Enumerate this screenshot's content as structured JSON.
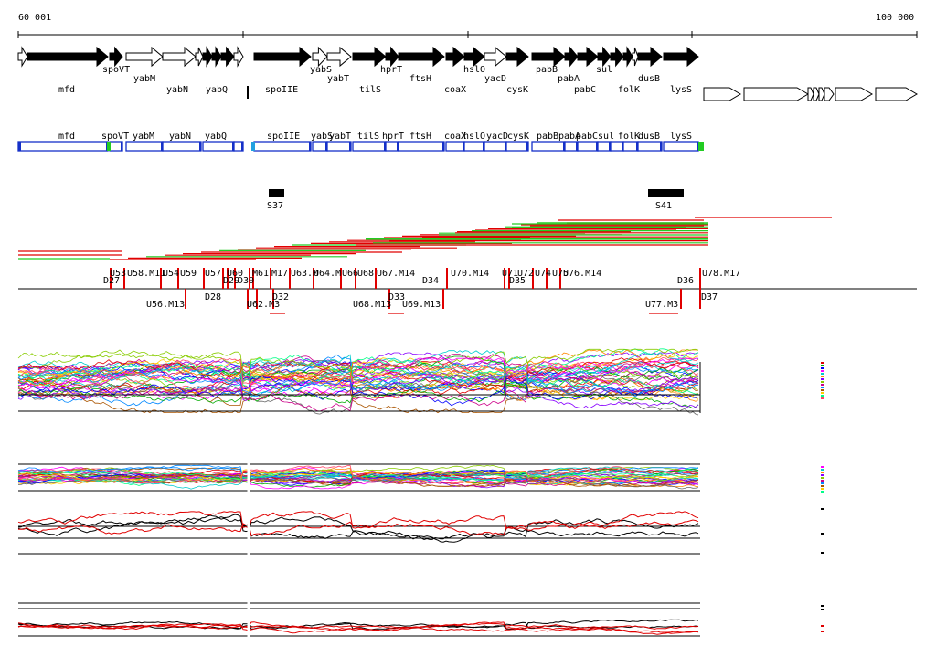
{
  "ruler": {
    "start_label": "60 001",
    "end_label": "100 000"
  },
  "colors": {
    "gene": "#000000",
    "blue": "#1530c8",
    "green": "#22cc22",
    "red": "#e00000",
    "gray": "#000000"
  },
  "genes_top": [
    {
      "name": "mfd",
      "row": "bottom"
    },
    {
      "name": "spoVT",
      "row": "top"
    },
    {
      "name": "yabM",
      "row": "mid"
    },
    {
      "name": "yabN",
      "row": "bottom"
    },
    {
      "name": "yabQ",
      "row": "bottom"
    },
    {
      "name": "spoIIE",
      "row": "bottom"
    },
    {
      "name": "yabS",
      "row": "top"
    },
    {
      "name": "yabT",
      "row": "mid"
    },
    {
      "name": "hprT",
      "row": "top"
    },
    {
      "name": "tilS",
      "row": "bottom"
    },
    {
      "name": "ftsH",
      "row": "mid"
    },
    {
      "name": "hslO",
      "row": "top"
    },
    {
      "name": "coaX",
      "row": "bottom"
    },
    {
      "name": "yacD",
      "row": "mid"
    },
    {
      "name": "cysK",
      "row": "bottom"
    },
    {
      "name": "pabB",
      "row": "top"
    },
    {
      "name": "pabA",
      "row": "mid"
    },
    {
      "name": "pabC",
      "row": "bottom"
    },
    {
      "name": "sul",
      "row": "top"
    },
    {
      "name": "folK",
      "row": "bottom"
    },
    {
      "name": "dusB",
      "row": "mid"
    },
    {
      "name": "lysS",
      "row": "bottom"
    }
  ],
  "genes_bar": [
    "mfd",
    "spoVT",
    "yabM",
    "yabN",
    "yabQ",
    "spoIIE",
    "yabS",
    "yabT",
    "tilS",
    "hprT",
    "ftsH",
    "coaX",
    "hslO",
    "yacD",
    "cysK",
    "pabB",
    "pabA",
    "pabC",
    "sul",
    "folK",
    "dusB",
    "lysS"
  ],
  "segments": [
    {
      "label": "S37"
    },
    {
      "label": "S41"
    }
  ],
  "features_upper": [
    {
      "label": "U53"
    },
    {
      "label": "U58.M11"
    },
    {
      "label": "U54"
    },
    {
      "label": "U59"
    },
    {
      "label": "U57"
    },
    {
      "label": "U60"
    },
    {
      "label": "M61"
    },
    {
      "label": "M17"
    },
    {
      "label": "U63.M"
    },
    {
      "label": "U64.M"
    },
    {
      "label": "U66"
    },
    {
      "label": "U68"
    },
    {
      "label": "U67.M14"
    },
    {
      "label": "U70.M14"
    },
    {
      "label": "U71"
    },
    {
      "label": "U72"
    },
    {
      "label": "U74"
    },
    {
      "label": "U75"
    },
    {
      "label": "U76.M14"
    },
    {
      "label": "U78.M17"
    }
  ],
  "features_upper_D": [
    {
      "label": "D27"
    },
    {
      "label": "D29"
    },
    {
      "label": "D30"
    },
    {
      "label": "D34"
    },
    {
      "label": "D35"
    },
    {
      "label": "D36"
    }
  ],
  "features_lower": [
    {
      "label": "U56.M13"
    },
    {
      "label": "D28"
    },
    {
      "label": "U62.M3"
    },
    {
      "label": "D32"
    },
    {
      "label": "U68.M13"
    },
    {
      "label": "D33"
    },
    {
      "label": "U69.M13"
    },
    {
      "label": "U77.M3"
    },
    {
      "label": "D37"
    }
  ]
}
